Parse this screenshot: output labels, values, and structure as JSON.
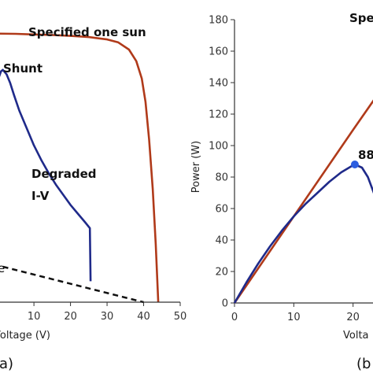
{
  "chart_data": [
    {
      "panel_label": "(a)",
      "type": "line",
      "xlabel": "Voltage (V)",
      "ylabel": "",
      "xlim": [
        -1,
        50
      ],
      "ylim": [
        0,
        10
      ],
      "x_ticks": [
        "0",
        "10",
        "20",
        "30",
        "40",
        "50"
      ],
      "x_tick_values": [
        0,
        10,
        20,
        30,
        40,
        50
      ],
      "annotations": [
        "Specified one sun",
        "Shunt",
        "Degraded",
        "I-V",
        "e"
      ],
      "colors": {
        "specified": "#b03a1a",
        "degraded": "#1f2a8a",
        "shunt_line": "#111111"
      },
      "series": [
        {
          "x": [
            -1,
            0,
            5,
            10,
            15,
            20,
            25,
            30,
            33,
            36,
            38,
            39.5,
            40.5,
            41.5,
            42.5,
            43.3,
            44
          ],
          "y": [
            9.25,
            9.25,
            9.24,
            9.22,
            9.2,
            9.17,
            9.13,
            9.05,
            8.95,
            8.7,
            8.3,
            7.7,
            6.9,
            5.6,
            3.9,
            2.0,
            0
          ]
        },
        {
          "x": [
            -1,
            0,
            1,
            1.5,
            2.5,
            3.5,
            4.5,
            6,
            8,
            10,
            12,
            14,
            16,
            18,
            20,
            22,
            24,
            25.3,
            25.5
          ],
          "y": [
            7.0,
            7.6,
            7.95,
            8.0,
            7.85,
            7.55,
            7.15,
            6.6,
            6.0,
            5.4,
            4.9,
            4.45,
            4.05,
            3.7,
            3.35,
            3.05,
            2.75,
            2.55,
            0.72
          ]
        },
        {
          "x": [
            -1,
            40
          ],
          "y": [
            1.3,
            0
          ]
        }
      ]
    },
    {
      "panel_label": "(b",
      "type": "line",
      "xlabel": "Volta",
      "ylabel": "Power (W)",
      "xlim": [
        0,
        30
      ],
      "ylim": [
        0,
        180
      ],
      "x_ticks": [
        "0",
        "10",
        "20"
      ],
      "x_tick_values": [
        0,
        10,
        20
      ],
      "y_ticks": [
        "0",
        "20",
        "40",
        "60",
        "80",
        "100",
        "120",
        "140",
        "160",
        "180"
      ],
      "y_tick_values": [
        0,
        20,
        40,
        60,
        80,
        100,
        120,
        140,
        160,
        180
      ],
      "annotations": [
        "Spe",
        "88"
      ],
      "max_power_point": {
        "x": 20.3,
        "y": 88
      },
      "colors": {
        "specified": "#b03a1a",
        "degraded": "#1f2a8a",
        "marker": "#2c5de0"
      },
      "series": [
        {
          "x": [
            0,
            10,
            20,
            25,
            30
          ],
          "y": [
            0,
            55,
            110,
            137,
            165
          ]
        },
        {
          "x": [
            0,
            2,
            4,
            6,
            8,
            10,
            12,
            14,
            16,
            18,
            20,
            20.3,
            21.5,
            22.5,
            23.5,
            24.5,
            25.3
          ],
          "y": [
            0,
            13,
            25,
            36,
            46,
            55,
            63,
            70,
            77,
            83,
            87.5,
            88,
            86,
            80,
            70,
            58,
            20
          ]
        }
      ]
    }
  ]
}
